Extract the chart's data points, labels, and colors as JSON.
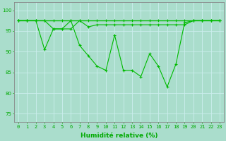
{
  "line1": {
    "x": [
      0,
      1,
      2,
      3,
      4,
      5,
      6,
      7,
      8,
      9,
      10,
      11,
      12,
      13,
      14,
      15,
      16,
      17,
      18,
      19,
      20,
      21,
      22,
      23
    ],
    "y": [
      97.5,
      97.5,
      97.5,
      97.5,
      97.5,
      97.5,
      97.5,
      97.5,
      97.5,
      97.5,
      97.5,
      97.5,
      97.5,
      97.5,
      97.5,
      97.5,
      97.5,
      97.5,
      97.5,
      97.5,
      97.5,
      97.5,
      97.5,
      97.5
    ],
    "color": "#00BB00",
    "linewidth": 1.0,
    "marker": "+"
  },
  "line2": {
    "x": [
      0,
      1,
      2,
      3,
      4,
      5,
      6,
      7,
      8,
      9,
      10,
      11,
      12,
      13,
      14,
      15,
      16,
      17,
      18,
      19,
      20,
      21,
      22,
      23
    ],
    "y": [
      97.5,
      97.5,
      97.5,
      90.5,
      95.5,
      95.5,
      97.5,
      91.5,
      89.0,
      86.5,
      85.5,
      94.0,
      85.5,
      85.5,
      84.0,
      89.5,
      86.5,
      81.5,
      87.0,
      97.0,
      97.5,
      97.5,
      97.5,
      97.5
    ],
    "color": "#00BB00",
    "linewidth": 0.8,
    "marker": "+"
  },
  "line3": {
    "x": [
      0,
      1,
      2,
      3,
      4,
      5,
      6,
      7,
      8,
      9,
      10,
      11,
      12,
      13,
      14,
      15,
      16,
      17,
      18,
      19,
      20,
      21,
      22,
      23
    ],
    "y": [
      97.5,
      97.5,
      97.5,
      97.5,
      95.5,
      95.5,
      95.5,
      97.5,
      96.0,
      96.5,
      96.5,
      96.5,
      96.5,
      96.5,
      96.5,
      96.5,
      96.5,
      96.5,
      96.5,
      96.5,
      97.5,
      97.5,
      97.5,
      97.5
    ],
    "color": "#00BB00",
    "linewidth": 0.8,
    "marker": "+"
  },
  "background_color": "#AADDCC",
  "grid_color": "#CCEEEE",
  "xlabel": "Humidité relative (%)",
  "xlabel_color": "#00AA00",
  "xlabel_fontsize": 6.5,
  "ylabel_ticks": [
    75,
    80,
    85,
    90,
    95,
    100
  ],
  "xlim": [
    -0.5,
    23.5
  ],
  "ylim": [
    73,
    102
  ],
  "xtick_labels": [
    "0",
    "1",
    "2",
    "3",
    "4",
    "5",
    "6",
    "7",
    "8",
    "9",
    "10",
    "11",
    "12",
    "13",
    "14",
    "15",
    "16",
    "17",
    "18",
    "19",
    "20",
    "21",
    "22",
    "23"
  ],
  "tick_color": "#00AA00",
  "tick_fontsize": 5.0,
  "axis_color": "#888888"
}
